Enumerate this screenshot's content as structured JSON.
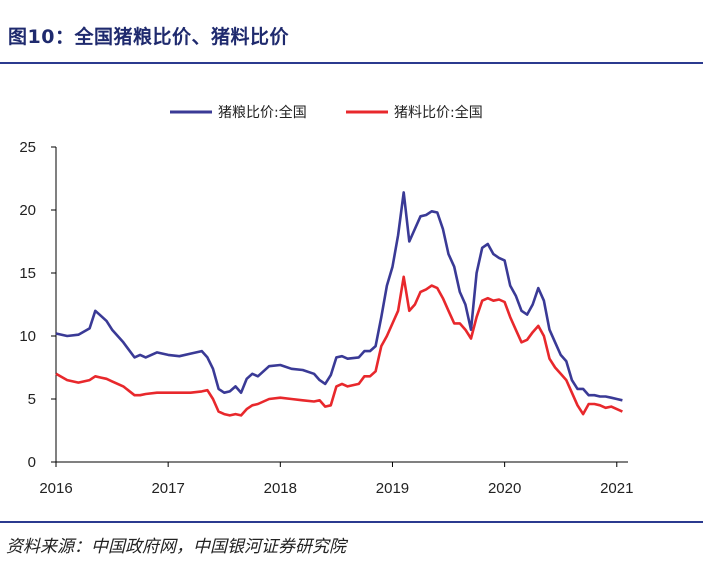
{
  "title": "图10：全国猪粮比价、猪料比价",
  "source": "资料来源：中国政府网，中国银河证券研究院",
  "colors": {
    "title": "#1f2a6e",
    "rule": "#2b3a8f"
  },
  "chart_data": {
    "type": "line",
    "ylim": [
      0,
      25
    ],
    "yticks": [
      0,
      5,
      10,
      15,
      20,
      25
    ],
    "xlim": [
      2016.0,
      2021.1
    ],
    "xticks": [
      2016,
      2017,
      2018,
      2019,
      2020,
      2021
    ],
    "legend_position": "top",
    "grid": false,
    "series": [
      {
        "name": "猪粮比价:全国",
        "color": "#3a3a96",
        "x": [
          2016.0,
          2016.1,
          2016.2,
          2016.3,
          2016.35,
          2016.4,
          2016.45,
          2016.5,
          2016.6,
          2016.7,
          2016.75,
          2016.8,
          2016.9,
          2017.0,
          2017.1,
          2017.2,
          2017.3,
          2017.35,
          2017.4,
          2017.45,
          2017.5,
          2017.55,
          2017.6,
          2017.65,
          2017.7,
          2017.75,
          2017.8,
          2017.9,
          2018.0,
          2018.1,
          2018.2,
          2018.3,
          2018.35,
          2018.4,
          2018.45,
          2018.5,
          2018.55,
          2018.6,
          2018.7,
          2018.75,
          2018.8,
          2018.85,
          2018.9,
          2018.95,
          2019.0,
          2019.05,
          2019.1,
          2019.15,
          2019.2,
          2019.25,
          2019.3,
          2019.35,
          2019.4,
          2019.45,
          2019.5,
          2019.55,
          2019.6,
          2019.65,
          2019.7,
          2019.75,
          2019.8,
          2019.85,
          2019.9,
          2019.95,
          2020.0,
          2020.05,
          2020.1,
          2020.15,
          2020.2,
          2020.25,
          2020.3,
          2020.35,
          2020.4,
          2020.45,
          2020.5,
          2020.55,
          2020.6,
          2020.65,
          2020.7,
          2020.75,
          2020.8,
          2020.85,
          2020.9,
          2020.95,
          2021.0,
          2021.05
        ],
        "y": [
          10.2,
          10.0,
          10.1,
          10.6,
          12.0,
          11.6,
          11.2,
          10.5,
          9.5,
          8.3,
          8.5,
          8.3,
          8.7,
          8.5,
          8.4,
          8.6,
          8.8,
          8.3,
          7.4,
          5.8,
          5.5,
          5.6,
          6.0,
          5.5,
          6.6,
          7.0,
          6.8,
          7.6,
          7.7,
          7.4,
          7.3,
          7.0,
          6.5,
          6.2,
          6.9,
          8.3,
          8.4,
          8.2,
          8.3,
          8.8,
          8.8,
          9.2,
          11.5,
          14.0,
          15.5,
          18.0,
          21.4,
          17.5,
          18.5,
          19.5,
          19.6,
          19.9,
          19.8,
          18.5,
          16.5,
          15.5,
          13.5,
          12.5,
          10.5,
          15.0,
          17.0,
          17.3,
          16.5,
          16.2,
          16.0,
          14.0,
          13.2,
          12.0,
          11.7,
          12.5,
          13.8,
          12.8,
          10.5,
          9.5,
          8.5,
          8.0,
          6.5,
          5.8,
          5.8,
          5.3,
          5.3,
          5.2,
          5.2,
          5.1,
          5.0,
          4.9
        ]
      },
      {
        "name": "猪料比价:全国",
        "color": "#e8282c",
        "x": [
          2016.0,
          2016.1,
          2016.2,
          2016.3,
          2016.35,
          2016.4,
          2016.45,
          2016.5,
          2016.6,
          2016.7,
          2016.75,
          2016.8,
          2016.9,
          2017.0,
          2017.1,
          2017.2,
          2017.3,
          2017.35,
          2017.4,
          2017.45,
          2017.5,
          2017.55,
          2017.6,
          2017.65,
          2017.7,
          2017.75,
          2017.8,
          2017.9,
          2018.0,
          2018.1,
          2018.2,
          2018.3,
          2018.35,
          2018.4,
          2018.45,
          2018.5,
          2018.55,
          2018.6,
          2018.7,
          2018.75,
          2018.8,
          2018.85,
          2018.9,
          2018.95,
          2019.0,
          2019.05,
          2019.1,
          2019.15,
          2019.2,
          2019.25,
          2019.3,
          2019.35,
          2019.4,
          2019.45,
          2019.5,
          2019.55,
          2019.6,
          2019.65,
          2019.7,
          2019.75,
          2019.8,
          2019.85,
          2019.9,
          2019.95,
          2020.0,
          2020.05,
          2020.1,
          2020.15,
          2020.2,
          2020.25,
          2020.3,
          2020.35,
          2020.4,
          2020.45,
          2020.5,
          2020.55,
          2020.6,
          2020.65,
          2020.7,
          2020.75,
          2020.8,
          2020.85,
          2020.9,
          2020.95,
          2021.0,
          2021.05
        ],
        "y": [
          7.0,
          6.5,
          6.3,
          6.5,
          6.8,
          6.7,
          6.6,
          6.4,
          6.0,
          5.3,
          5.3,
          5.4,
          5.5,
          5.5,
          5.5,
          5.5,
          5.6,
          5.7,
          5.0,
          4.0,
          3.8,
          3.7,
          3.8,
          3.7,
          4.2,
          4.5,
          4.6,
          5.0,
          5.1,
          5.0,
          4.9,
          4.8,
          4.9,
          4.4,
          4.5,
          6.0,
          6.2,
          6.0,
          6.2,
          6.8,
          6.8,
          7.2,
          9.2,
          10.0,
          11.0,
          12.0,
          14.7,
          12.0,
          12.5,
          13.5,
          13.7,
          14.0,
          13.8,
          13.0,
          12.0,
          11.0,
          11.0,
          10.5,
          9.8,
          11.5,
          12.8,
          13.0,
          12.8,
          12.9,
          12.7,
          11.5,
          10.5,
          9.5,
          9.7,
          10.3,
          10.8,
          10.0,
          8.2,
          7.5,
          7.0,
          6.5,
          5.5,
          4.5,
          3.8,
          4.6,
          4.6,
          4.5,
          4.3,
          4.4,
          4.2,
          4.0
        ]
      }
    ]
  }
}
